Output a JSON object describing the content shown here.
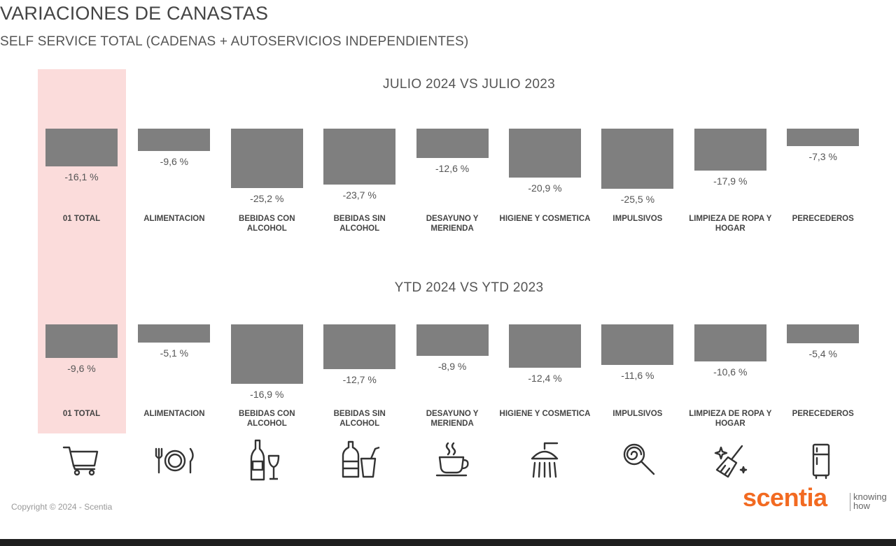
{
  "header": {
    "title": "VARIACIONES DE CANASTAS",
    "subtitle": "SELF SERVICE TOTAL (CADENAS + AUTOSERVICIOS INDEPENDIENTES)"
  },
  "chart_data": [
    {
      "type": "bar",
      "title": "JULIO 2024 VS JULIO 2023",
      "categories": [
        "01 TOTAL",
        "ALIMENTACION",
        "BEBIDAS CON ALCOHOL",
        "BEBIDAS SIN ALCOHOL",
        "DESAYUNO Y MERIENDA",
        "HIGIENE Y COSMETICA",
        "IMPULSIVOS",
        "LIMPIEZA DE ROPA Y HOGAR",
        "PERECEDEROS"
      ],
      "values": [
        -16.1,
        -9.6,
        -25.2,
        -23.7,
        -12.6,
        -20.9,
        -25.5,
        -17.9,
        -7.3
      ],
      "labels": [
        "-16,1 %",
        "-9,6 %",
        "-25,2 %",
        "-23,7 %",
        "-12,6 %",
        "-20,9 %",
        "-25,5 %",
        "-17,9 %",
        "-7,3 %"
      ],
      "color": "#7f7f7f",
      "highlight_category": "01 TOTAL"
    },
    {
      "type": "bar",
      "title": "YTD 2024 VS YTD 2023",
      "categories": [
        "01 TOTAL",
        "ALIMENTACION",
        "BEBIDAS CON ALCOHOL",
        "BEBIDAS SIN ALCOHOL",
        "DESAYUNO Y MERIENDA",
        "HIGIENE Y COSMETICA",
        "IMPULSIVOS",
        "LIMPIEZA DE ROPA Y HOGAR",
        "PERECEDEROS"
      ],
      "values": [
        -9.6,
        -5.1,
        -16.9,
        -12.7,
        -8.9,
        -12.4,
        -11.6,
        -10.6,
        -5.4
      ],
      "labels": [
        "-9,6 %",
        "-5,1 %",
        "-16,9 %",
        "-12,7 %",
        "-8,9 %",
        "-12,4 %",
        "-11,6 %",
        "-10,6 %",
        "-5,4 %"
      ],
      "color": "#7f7f7f",
      "highlight_category": "01 TOTAL"
    }
  ],
  "icons": [
    "shopping-cart-icon",
    "cutlery-plate-icon",
    "wine-bottle-icon",
    "soda-bottle-cup-icon",
    "coffee-cup-icon",
    "shower-icon",
    "lollipop-icon",
    "broom-icon",
    "fridge-icon"
  ],
  "colors": {
    "bar": "#7f7f7f",
    "highlight": "#fbdcdb",
    "brand": "#f26a21"
  },
  "footer": {
    "copyright": "Copyright © 2024 - Scentia",
    "brand": "scentia",
    "tagline_line1": "knowing",
    "tagline_line2": "how"
  }
}
